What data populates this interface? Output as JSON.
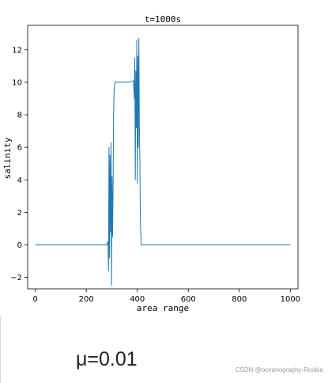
{
  "chart_data": {
    "type": "line",
    "title": "t=1000s",
    "xlabel": "area range",
    "ylabel": "salinity",
    "xlim": [
      -30,
      1030
    ],
    "ylim": [
      -2.7,
      13.5
    ],
    "xticks": [
      0,
      200,
      400,
      600,
      800,
      1000
    ],
    "yticks": [
      -2,
      0,
      2,
      4,
      6,
      8,
      10,
      12
    ],
    "xtick_labels": [
      "0",
      "200",
      "400",
      "600",
      "800",
      "1000"
    ],
    "ytick_labels": [
      "−2",
      "0",
      "2",
      "4",
      "6",
      "8",
      "10",
      "12"
    ],
    "grid": false,
    "series_color": "#1f77b4",
    "series": [
      {
        "x": [
          0,
          100,
          200,
          280,
          285,
          287,
          289,
          291,
          293,
          295,
          297,
          299,
          301,
          303,
          305,
          307,
          309,
          312,
          330,
          350,
          370,
          385,
          388,
          390,
          392,
          394,
          396,
          398,
          400,
          402,
          404,
          406,
          408,
          410,
          412,
          415,
          420,
          500,
          600,
          700,
          800,
          900,
          1000
        ],
        "y": [
          0,
          0,
          0,
          0,
          0.2,
          -1.6,
          6.0,
          -0.8,
          5.5,
          0.8,
          6.3,
          -2.5,
          4.2,
          0.5,
          3.5,
          8.0,
          9.5,
          10.0,
          10.0,
          10.0,
          10.0,
          10.1,
          9.0,
          11.5,
          4.0,
          10.7,
          7.2,
          12.6,
          3.8,
          11.6,
          6.0,
          12.7,
          7.5,
          5.0,
          1.5,
          0.0,
          0,
          0,
          0,
          0,
          0,
          0,
          0
        ]
      }
    ]
  },
  "caption": "μ=0.01",
  "watermark": "CSDN @oceanography-Rookie"
}
